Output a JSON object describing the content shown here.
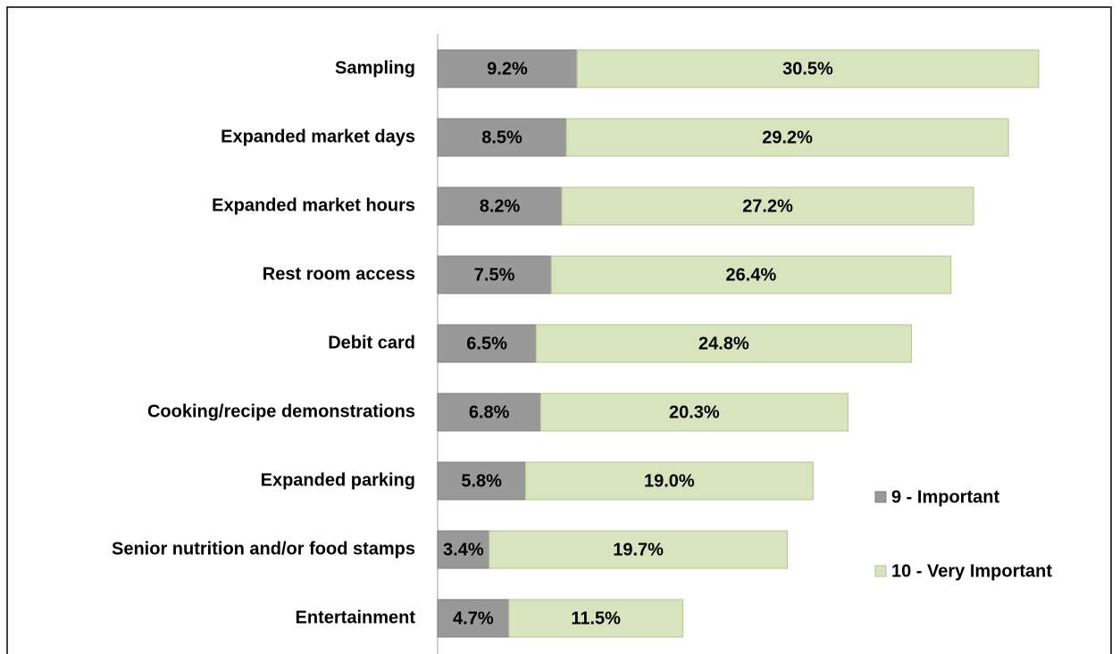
{
  "chart_data": {
    "type": "stacked-bar-horizontal",
    "categories": [
      "Sampling",
      "Expanded market days",
      "Expanded market hours",
      "Rest room access",
      "Debit card",
      "Cooking/recipe demonstrations",
      "Expanded parking",
      "Senior nutrition and/or food stamps",
      "Entertainment"
    ],
    "series": [
      {
        "name": "9 - Important",
        "color": "#999999",
        "values": [
          9.2,
          8.5,
          8.2,
          7.5,
          6.5,
          6.8,
          5.8,
          3.4,
          4.7
        ],
        "value_labels": [
          "9.2%",
          "8.5%",
          "8.2%",
          "7.5%",
          "6.5%",
          "6.8%",
          "5.8%",
          "3.4%",
          "4.7%"
        ]
      },
      {
        "name": "10 - Very Important",
        "color": "#d7e4bd",
        "values": [
          30.5,
          29.2,
          27.2,
          26.4,
          24.8,
          20.3,
          19.0,
          19.7,
          11.5
        ],
        "value_labels": [
          "30.5%",
          "29.2%",
          "27.2%",
          "26.4%",
          "24.8%",
          "20.3%",
          "19.0%",
          "19.7%",
          "11.5%"
        ]
      }
    ],
    "legend": "right"
  }
}
